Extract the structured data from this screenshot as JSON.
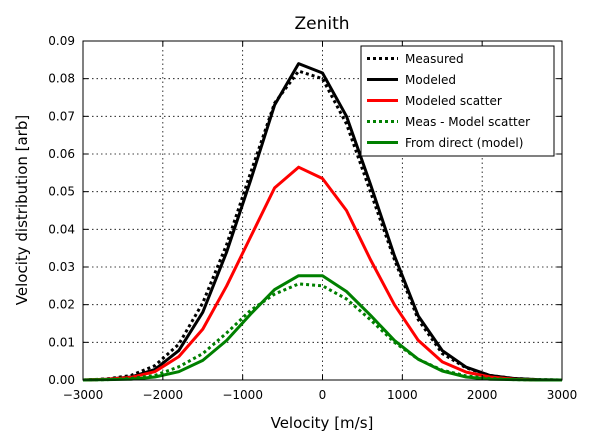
{
  "chart_data": {
    "type": "line",
    "title": "Zenith",
    "xlabel": "Velocity [m/s]",
    "ylabel": "Velocity distribution [arb]",
    "xlim": [
      -3000,
      3000
    ],
    "ylim": [
      0,
      0.09
    ],
    "xticks": [
      -3000,
      -2000,
      -1000,
      0,
      1000,
      2000,
      3000
    ],
    "xtick_labels": [
      "−3000",
      "−2000",
      "−1000",
      "0",
      "1000",
      "2000",
      "3000"
    ],
    "yticks": [
      0,
      0.01,
      0.02,
      0.03,
      0.04,
      0.05,
      0.06,
      0.07,
      0.08,
      0.09
    ],
    "ytick_labels": [
      "0.00",
      "0.01",
      "0.02",
      "0.03",
      "0.04",
      "0.05",
      "0.06",
      "0.07",
      "0.08",
      "0.09"
    ],
    "grid": true,
    "legend_position": "top-right",
    "x": [
      -3000,
      -2700,
      -2400,
      -2100,
      -1800,
      -1500,
      -1200,
      -900,
      -600,
      -300,
      0,
      300,
      600,
      900,
      1200,
      1500,
      1800,
      2100,
      2400,
      2700,
      3000
    ],
    "series": [
      {
        "name": "Measured",
        "color": "#000000",
        "style": "dotted",
        "values": [
          0.0,
          0.0003,
          0.0012,
          0.0038,
          0.0095,
          0.0205,
          0.036,
          0.055,
          0.0735,
          0.082,
          0.08,
          0.068,
          0.05,
          0.032,
          0.016,
          0.007,
          0.0032,
          0.0012,
          0.0004,
          0.0001,
          0.0
        ]
      },
      {
        "name": "Modeled",
        "color": "#000000",
        "style": "solid",
        "values": [
          0.0,
          0.0002,
          0.0008,
          0.0028,
          0.0078,
          0.018,
          0.034,
          0.053,
          0.073,
          0.084,
          0.0815,
          0.07,
          0.052,
          0.033,
          0.017,
          0.0078,
          0.0034,
          0.0012,
          0.0004,
          0.0001,
          0.0
        ]
      },
      {
        "name": "Modeled scatter",
        "color": "#ff0000",
        "style": "solid",
        "values": [
          0.0,
          0.0002,
          0.0007,
          0.0022,
          0.0062,
          0.0135,
          0.025,
          0.038,
          0.051,
          0.0565,
          0.0535,
          0.045,
          0.032,
          0.02,
          0.0105,
          0.0048,
          0.0021,
          0.0008,
          0.0002,
          0.0,
          0.0
        ]
      },
      {
        "name": "Meas - Model scatter",
        "color": "#008000",
        "style": "dotted",
        "values": [
          0.0,
          0.0001,
          0.0004,
          0.0012,
          0.0035,
          0.007,
          0.0125,
          0.0185,
          0.0228,
          0.0255,
          0.025,
          0.0215,
          0.016,
          0.01,
          0.0055,
          0.0026,
          0.0011,
          0.0004,
          0.0001,
          0.0,
          0.0
        ]
      },
      {
        "name": "From direct (model)",
        "color": "#008000",
        "style": "solid",
        "values": [
          0.0,
          0.0001,
          0.0002,
          0.0008,
          0.0022,
          0.0052,
          0.0105,
          0.0175,
          0.024,
          0.0277,
          0.0277,
          0.0235,
          0.0172,
          0.0105,
          0.0055,
          0.0024,
          0.0008,
          0.0002,
          0.0001,
          0.0,
          0.0
        ]
      }
    ]
  }
}
